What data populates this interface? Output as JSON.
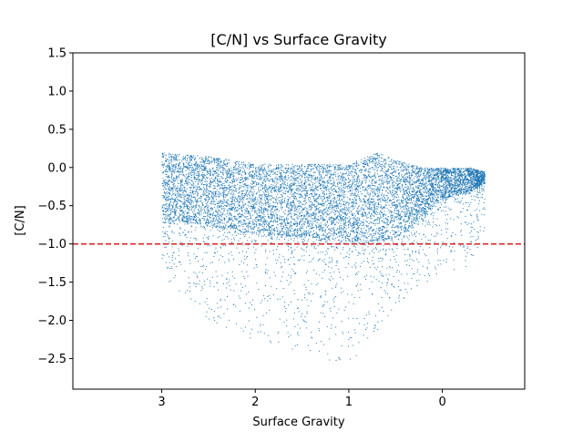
{
  "chart_data": {
    "type": "scatter",
    "title": "[C/N] vs Surface Gravity",
    "xlabel": "Surface Gravity",
    "ylabel": "[C/N]",
    "xlim": [
      3.95,
      -0.88
    ],
    "ylim": [
      -2.9,
      1.5
    ],
    "x_inverted": true,
    "x_ticks": [
      3,
      2,
      1,
      0
    ],
    "x_tick_labels": [
      "3",
      "2",
      "1",
      "0"
    ],
    "y_ticks": [
      1.5,
      1.0,
      0.5,
      0.0,
      -0.5,
      -1.0,
      -1.5,
      -2.0,
      -2.5
    ],
    "y_tick_labels": [
      "1.5",
      "1.0",
      "0.5",
      "0.0",
      "−0.5",
      "−1.0",
      "−1.5",
      "−2.0",
      "−2.5"
    ],
    "grid": false,
    "legend": "none",
    "point_color": "#1f77b4",
    "reference_line": {
      "y": -1.0,
      "color": "#d62728",
      "style": "dashed"
    },
    "density_envelope": {
      "description": "dense point cloud",
      "x": [
        3.0,
        2.5,
        2.0,
        1.5,
        1.0,
        0.7,
        0.5,
        0.2,
        0.0,
        -0.3,
        -0.45
      ],
      "y_center": [
        -0.2,
        -0.22,
        -0.25,
        -0.28,
        -0.3,
        -0.3,
        -0.2,
        -0.1,
        -0.05,
        -0.05,
        -0.07
      ],
      "y_upper": [
        0.2,
        0.15,
        0.05,
        0.05,
        0.05,
        0.2,
        0.1,
        0.0,
        0.0,
        0.0,
        -0.05
      ],
      "y_lower": [
        -0.65,
        -0.75,
        -0.85,
        -0.9,
        -0.95,
        -0.95,
        -0.9,
        -0.6,
        -0.4,
        -0.3,
        -0.2
      ],
      "sparse_tail_min": [
        -1.4,
        -2.0,
        -2.3,
        -2.4,
        -2.6,
        -2.2,
        -1.8,
        -1.5,
        -1.4,
        -1.3,
        -0.8
      ]
    }
  }
}
